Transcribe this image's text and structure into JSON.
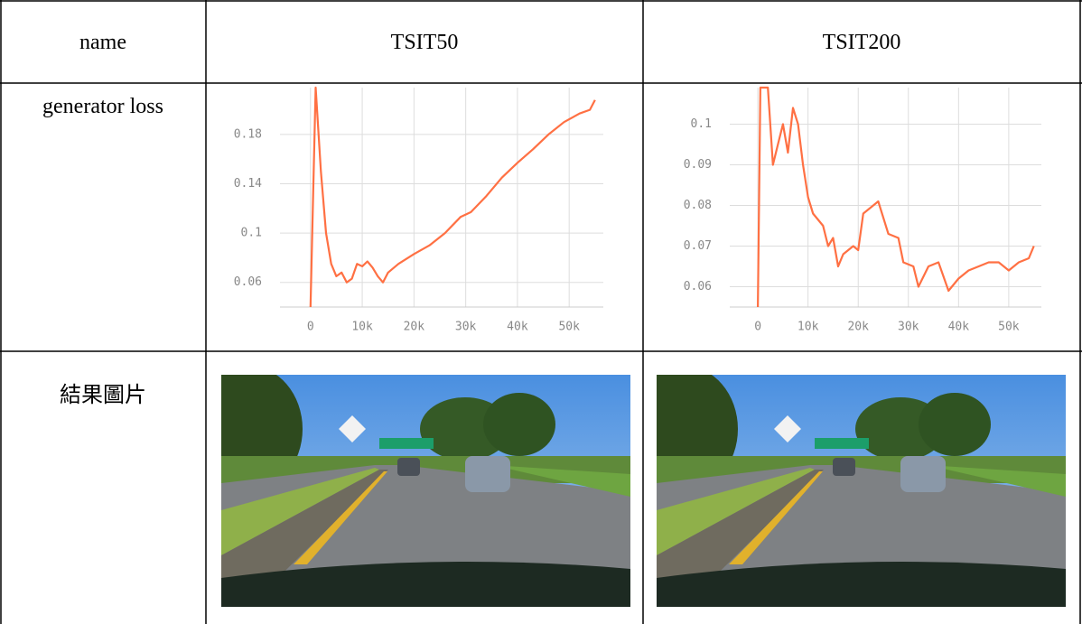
{
  "table": {
    "header": [
      "name",
      "TSIT50",
      "TSIT200"
    ],
    "rows": [
      {
        "label": "generator loss"
      },
      {
        "label": "結果圖片"
      }
    ]
  },
  "chart_data": [
    {
      "type": "line",
      "x": [
        0,
        1000,
        2000,
        3000,
        4000,
        5000,
        6000,
        7000,
        8000,
        9000,
        10000,
        11000,
        12000,
        13000,
        14000,
        15000,
        17000,
        20000,
        23000,
        26000,
        29000,
        31000,
        34000,
        37000,
        40000,
        43000,
        46000,
        49000,
        52000,
        54000,
        55000
      ],
      "series": [
        {
          "color": "#ff7043",
          "values": [
            0.04,
            0.218,
            0.15,
            0.1,
            0.075,
            0.065,
            0.068,
            0.06,
            0.063,
            0.075,
            0.073,
            0.077,
            0.072,
            0.065,
            0.06,
            0.068,
            0.075,
            0.083,
            0.09,
            0.1,
            0.113,
            0.117,
            0.13,
            0.145,
            0.157,
            0.168,
            0.18,
            0.19,
            0.197,
            0.2,
            0.208
          ]
        }
      ],
      "xlim": [
        -5900,
        56600
      ],
      "ylim": [
        0.04,
        0.218
      ],
      "xticks": [
        0,
        {
          "value": 10000,
          "label": "10k"
        },
        {
          "value": 20000,
          "label": "20k"
        },
        {
          "value": 30000,
          "label": "30k"
        },
        {
          "value": 40000,
          "label": "40k"
        },
        {
          "value": 50000,
          "label": "50k"
        }
      ],
      "yticks": [
        0.06,
        0.1,
        0.14,
        0.18
      ],
      "grid": true
    },
    {
      "type": "line",
      "x": [
        0,
        500,
        2000,
        3000,
        4000,
        5000,
        6000,
        7000,
        8000,
        9000,
        10000,
        11000,
        13000,
        14000,
        15000,
        16000,
        17000,
        19000,
        20000,
        21000,
        23000,
        24000,
        25000,
        26000,
        28000,
        29000,
        31000,
        32000,
        34000,
        36000,
        38000,
        40000,
        42000,
        44000,
        46000,
        48000,
        50000,
        52000,
        54000,
        55000
      ],
      "series": [
        {
          "color": "#ff7043",
          "values": [
            0.055,
            0.109,
            0.109,
            0.09,
            0.095,
            0.1,
            0.093,
            0.104,
            0.1,
            0.09,
            0.082,
            0.078,
            0.075,
            0.07,
            0.072,
            0.065,
            0.068,
            0.07,
            0.069,
            0.078,
            0.08,
            0.081,
            0.077,
            0.073,
            0.072,
            0.066,
            0.065,
            0.06,
            0.065,
            0.066,
            0.059,
            0.062,
            0.064,
            0.065,
            0.066,
            0.066,
            0.064,
            0.066,
            0.067,
            0.07
          ]
        }
      ],
      "xlim": [
        -5600,
        56500
      ],
      "ylim": [
        0.055,
        0.109
      ],
      "xticks": [
        0,
        {
          "value": 10000,
          "label": "10k"
        },
        {
          "value": 20000,
          "label": "20k"
        },
        {
          "value": 30000,
          "label": "30k"
        },
        {
          "value": 40000,
          "label": "40k"
        },
        {
          "value": 50000,
          "label": "50k"
        }
      ],
      "yticks": [
        0.06,
        0.07,
        0.08,
        0.09,
        0.1
      ],
      "grid": true
    }
  ]
}
